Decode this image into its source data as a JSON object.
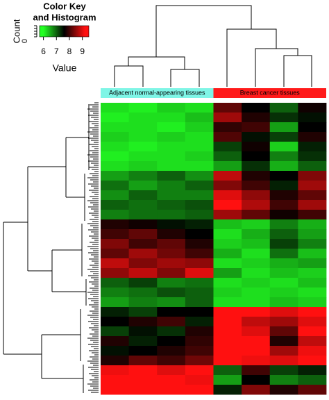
{
  "chart_data": {
    "type": "heatmap",
    "color_key": {
      "title_lines": [
        "Color Key",
        "and Histogram"
      ],
      "ylabel": "Count",
      "yticks": [
        0
      ],
      "xlabel": "Value",
      "xlim": [
        5.7,
        9.5
      ],
      "xticks": [
        6,
        7,
        8,
        9
      ]
    },
    "color_scale": {
      "values": [
        6,
        7.6,
        9.2
      ],
      "colors": [
        "#22ff22",
        "#000000",
        "#ff1010"
      ]
    },
    "column_groups": [
      {
        "label": "Adjacent normal-appearing tissues",
        "color": "#7ff5e6"
      },
      {
        "label": "Breast cancer tissues",
        "color": "#ff1a1a"
      }
    ],
    "values": [
      [
        6.2,
        6.1,
        6.3,
        6.2,
        8.2,
        7.6,
        7.0,
        7.7
      ],
      [
        6.1,
        6.2,
        6.2,
        6.4,
        8.6,
        7.8,
        7.3,
        7.5
      ],
      [
        6.2,
        6.2,
        6.1,
        6.3,
        7.9,
        8.0,
        6.6,
        7.6
      ],
      [
        6.3,
        6.2,
        6.3,
        6.2,
        8.1,
        7.5,
        7.2,
        7.8
      ],
      [
        6.2,
        6.1,
        6.2,
        6.2,
        7.2,
        7.7,
        6.3,
        7.4
      ],
      [
        6.1,
        6.2,
        6.2,
        6.3,
        7.0,
        7.6,
        6.8,
        7.3
      ],
      [
        6.2,
        6.3,
        6.2,
        6.2,
        6.6,
        7.3,
        6.5,
        7.0
      ],
      [
        6.6,
        6.8,
        7.0,
        6.7,
        8.8,
        7.8,
        7.6,
        8.4
      ],
      [
        6.9,
        6.6,
        6.8,
        7.0,
        8.4,
        8.0,
        7.4,
        8.6
      ],
      [
        6.7,
        7.0,
        6.8,
        6.8,
        9.0,
        8.5,
        7.8,
        8.2
      ],
      [
        7.0,
        6.9,
        7.0,
        7.1,
        9.2,
        8.7,
        8.0,
        8.6
      ],
      [
        6.8,
        6.9,
        6.9,
        7.0,
        8.6,
        8.2,
        7.7,
        8.0
      ],
      [
        7.8,
        7.7,
        7.5,
        7.4,
        6.4,
        6.3,
        6.8,
        6.5
      ],
      [
        8.0,
        8.2,
        7.8,
        7.6,
        6.2,
        6.5,
        7.0,
        6.6
      ],
      [
        8.4,
        8.0,
        8.2,
        7.8,
        6.3,
        6.4,
        7.2,
        6.8
      ],
      [
        8.2,
        8.6,
        8.3,
        8.0,
        6.5,
        6.2,
        6.9,
        6.4
      ],
      [
        8.8,
        8.4,
        8.6,
        8.5,
        6.2,
        6.3,
        6.5,
        6.6
      ],
      [
        8.5,
        8.8,
        8.4,
        9.0,
        6.6,
        6.2,
        6.4,
        6.3
      ],
      [
        7.0,
        7.2,
        6.8,
        6.9,
        6.2,
        6.3,
        6.2,
        6.4
      ],
      [
        6.8,
        6.9,
        7.1,
        7.0,
        6.3,
        6.2,
        6.3,
        6.2
      ],
      [
        6.6,
        6.8,
        6.7,
        7.0,
        6.2,
        6.2,
        6.4,
        6.3
      ],
      [
        7.4,
        7.2,
        7.6,
        7.6,
        9.2,
        9.3,
        9.0,
        9.2
      ],
      [
        7.6,
        7.8,
        8.0,
        7.4,
        9.3,
        8.8,
        8.6,
        9.0
      ],
      [
        7.2,
        7.5,
        7.3,
        7.8,
        9.2,
        9.0,
        8.2,
        9.3
      ],
      [
        7.8,
        7.4,
        7.6,
        7.9,
        9.3,
        9.2,
        7.8,
        8.8
      ],
      [
        7.5,
        7.6,
        7.8,
        8.0,
        9.2,
        9.3,
        8.6,
        9.1
      ],
      [
        7.8,
        8.2,
        8.0,
        8.3,
        9.3,
        9.1,
        9.0,
        9.2
      ],
      [
        9.1,
        9.2,
        9.0,
        9.2,
        7.0,
        8.0,
        7.2,
        7.4
      ],
      [
        9.2,
        9.3,
        9.2,
        9.1,
        6.6,
        7.6,
        6.8,
        7.0
      ],
      [
        9.3,
        9.2,
        9.3,
        9.2,
        7.4,
        8.4,
        7.8,
        8.2
      ]
    ]
  }
}
